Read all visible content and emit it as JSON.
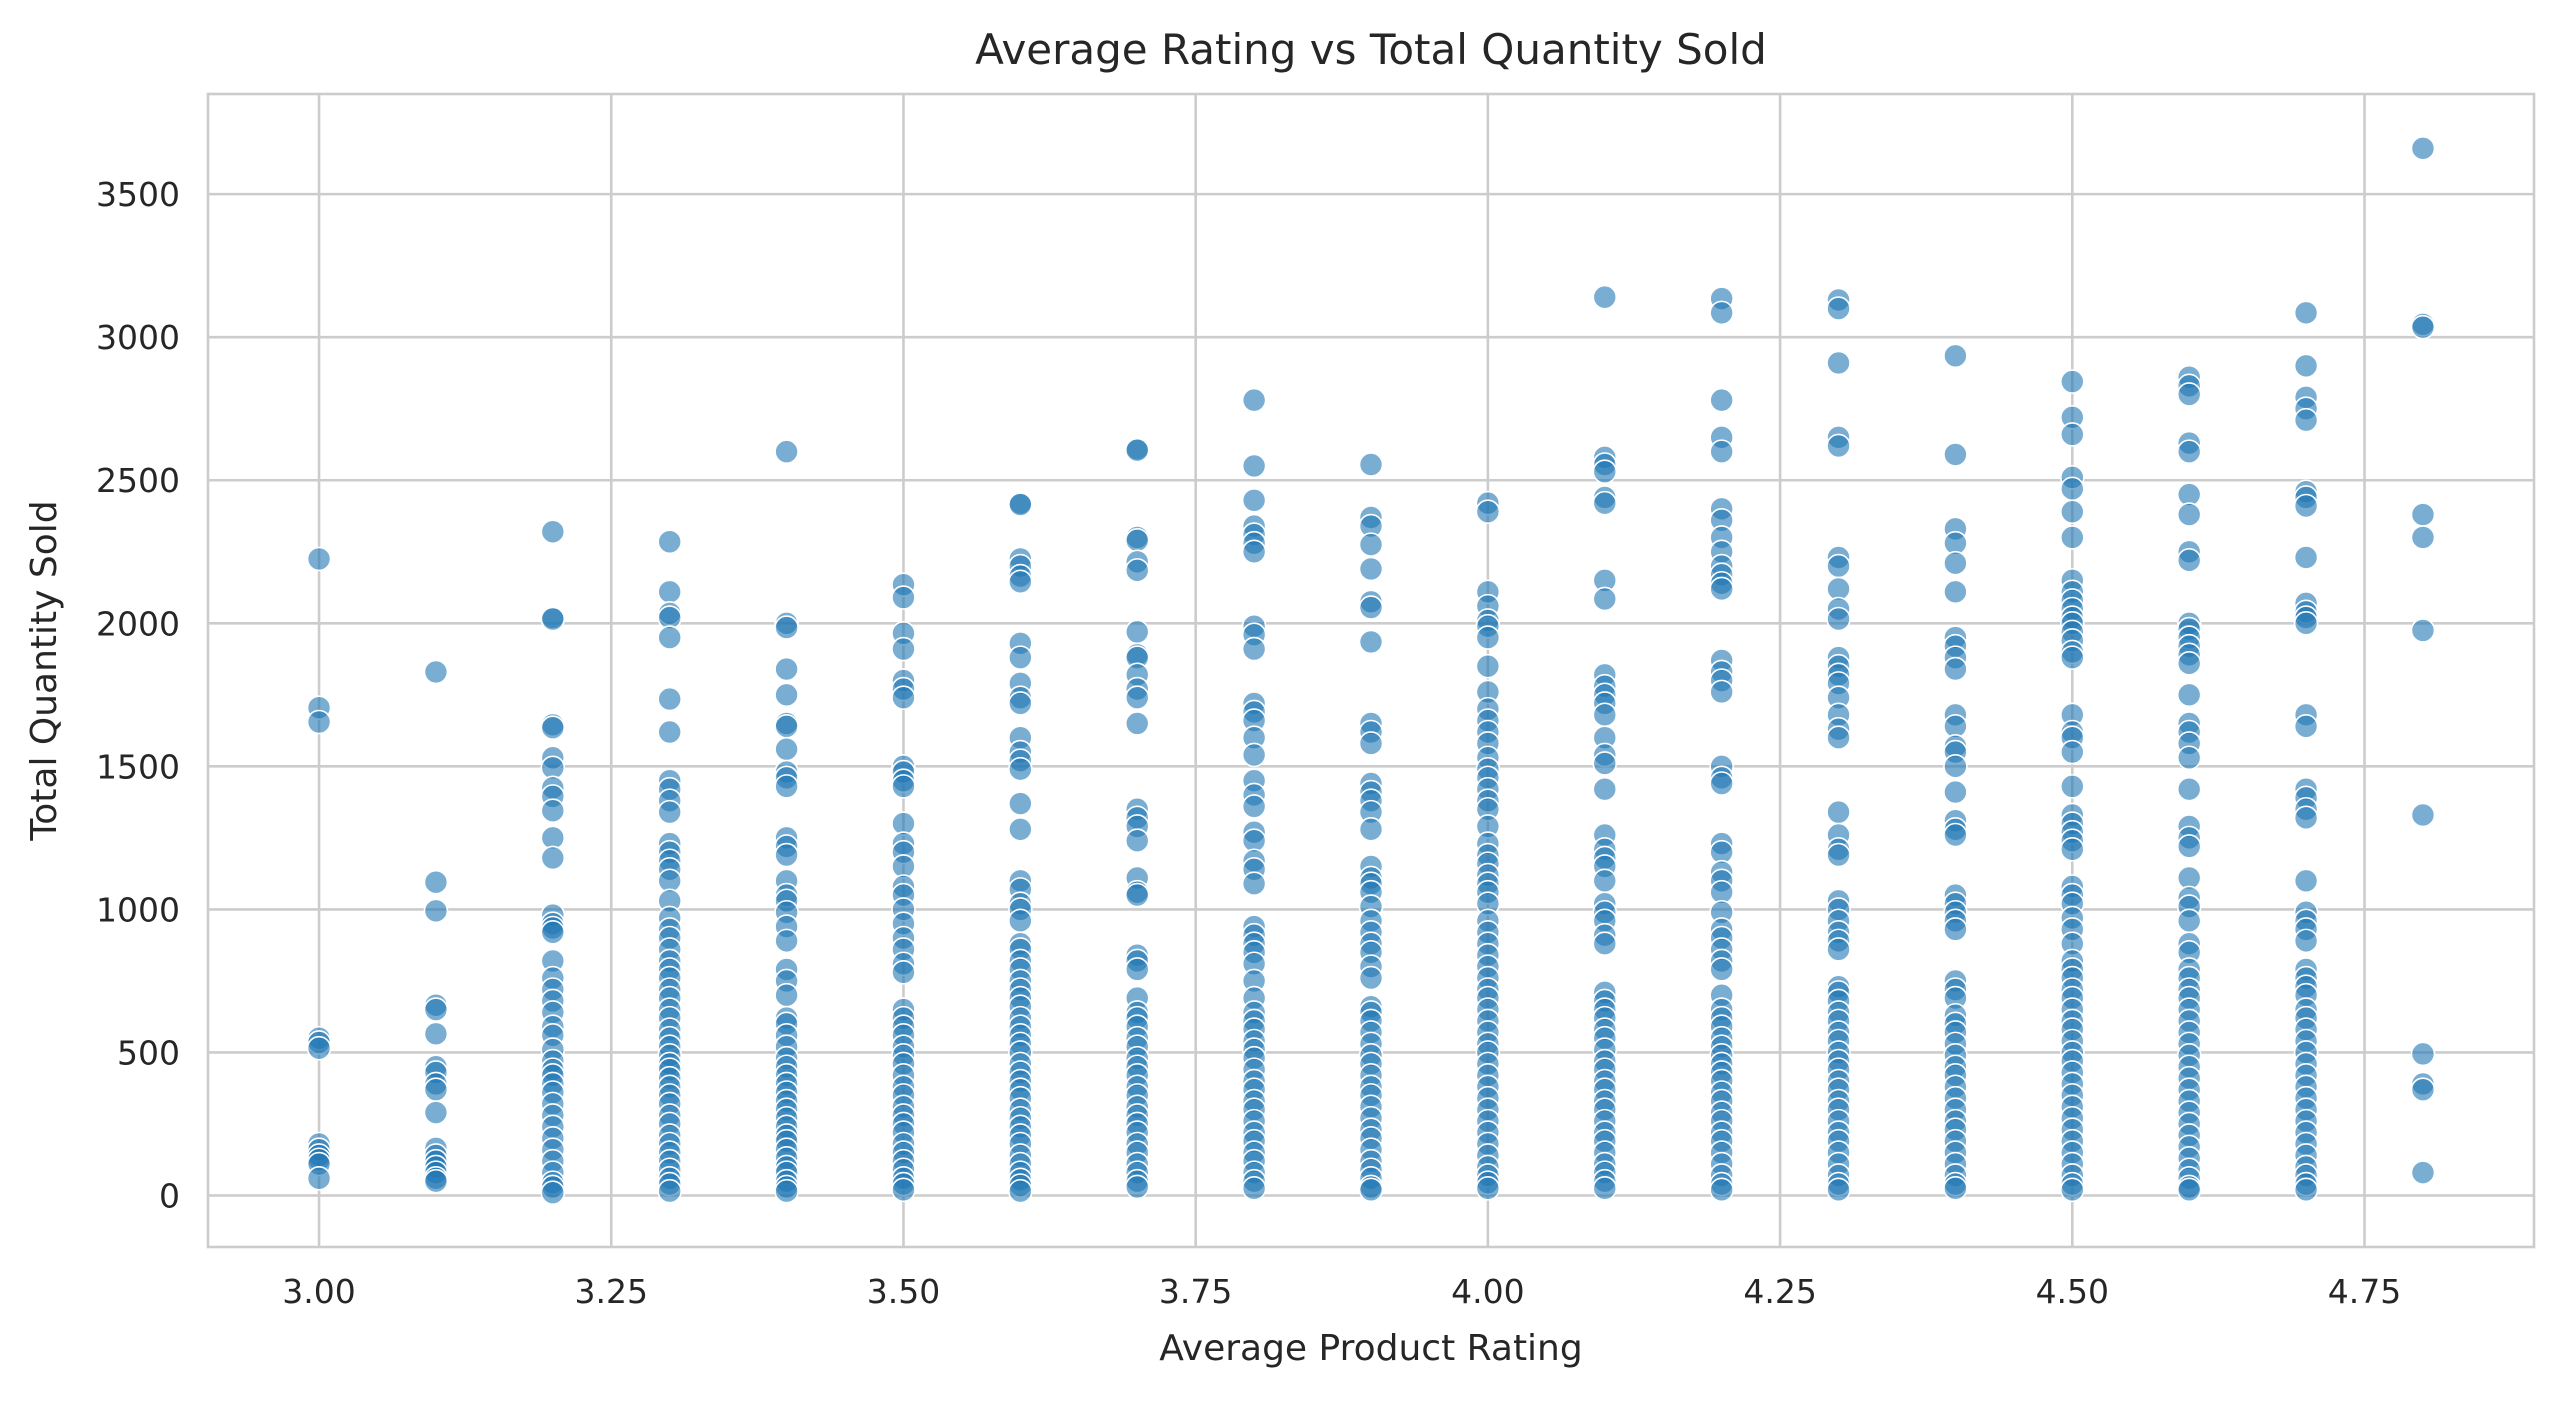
{
  "chart_data": {
    "type": "scatter",
    "title": "Average Rating vs Total Quantity Sold",
    "xlabel": "Average Product Rating",
    "ylabel": "Total Quantity Sold",
    "xlim": [
      2.905,
      4.895
    ],
    "ylim": [
      -180,
      3850
    ],
    "xticks": [
      3.0,
      3.25,
      3.5,
      3.75,
      4.0,
      4.25,
      4.5,
      4.75
    ],
    "xtick_labels": [
      "3.00",
      "3.25",
      "3.50",
      "3.75",
      "4.00",
      "4.25",
      "4.50",
      "4.75"
    ],
    "yticks": [
      0,
      500,
      1000,
      1500,
      2000,
      2500,
      3000,
      3500
    ],
    "ytick_labels": [
      "0",
      "500",
      "1000",
      "1500",
      "2000",
      "2500",
      "3000",
      "3500"
    ],
    "grid": true,
    "marker_color": "#1f77b4",
    "marker_opacity": 0.6,
    "points_by_rating": [
      {
        "x": 3.0,
        "y": [
          2225,
          1705,
          1655,
          550,
          535,
          515,
          180,
          160,
          140,
          125,
          110,
          60
        ]
      },
      {
        "x": 3.1,
        "y": [
          1830,
          1095,
          995,
          665,
          650,
          565,
          450,
          430,
          390,
          370,
          290,
          165,
          140,
          120,
          100,
          80,
          60,
          50
        ]
      },
      {
        "x": 3.2,
        "y": [
          2320,
          2020,
          2015,
          1645,
          1635,
          1530,
          1495,
          1425,
          1395,
          1345,
          1250,
          1180,
          980,
          950,
          935,
          920,
          820,
          760,
          720,
          680,
          640,
          590,
          560,
          510,
          470,
          440,
          420,
          390,
          360,
          320,
          280,
          240,
          200,
          160,
          120,
          80,
          45,
          30,
          10
        ]
      },
      {
        "x": 3.3,
        "y": [
          2285,
          2110,
          2035,
          2020,
          1950,
          1735,
          1620,
          1450,
          1420,
          1380,
          1340,
          1230,
          1200,
          1170,
          1140,
          1100,
          1030,
          970,
          930,
          900,
          860,
          820,
          790,
          760,
          720,
          690,
          650,
          620,
          580,
          550,
          520,
          490,
          460,
          440,
          410,
          380,
          350,
          320,
          280,
          250,
          210,
          180,
          150,
          120,
          90,
          60,
          40,
          15
        ]
      },
      {
        "x": 3.4,
        "y": [
          2600,
          2000,
          1985,
          1840,
          1750,
          1650,
          1640,
          1560,
          1480,
          1460,
          1430,
          1250,
          1220,
          1190,
          1100,
          1050,
          1030,
          990,
          940,
          890,
          790,
          750,
          700,
          620,
          600,
          560,
          520,
          480,
          450,
          420,
          390,
          360,
          330,
          300,
          270,
          240,
          210,
          190,
          160,
          130,
          100,
          80,
          50,
          30,
          15
        ]
      },
      {
        "x": 3.5,
        "y": [
          2135,
          2090,
          1965,
          1910,
          1800,
          1770,
          1740,
          1500,
          1480,
          1450,
          1430,
          1300,
          1230,
          1200,
          1150,
          1080,
          1050,
          1000,
          950,
          900,
          860,
          810,
          780,
          650,
          620,
          590,
          560,
          520,
          490,
          460,
          420,
          380,
          350,
          310,
          280,
          250,
          220,
          180,
          150,
          120,
          90,
          60,
          40,
          20
        ]
      },
      {
        "x": 3.6,
        "y": [
          2420,
          2415,
          2225,
          2200,
          2165,
          2145,
          1930,
          1880,
          1790,
          1740,
          1720,
          1600,
          1550,
          1520,
          1490,
          1370,
          1280,
          1100,
          1070,
          1020,
          1000,
          960,
          880,
          860,
          820,
          790,
          750,
          720,
          690,
          660,
          620,
          590,
          560,
          530,
          500,
          460,
          430,
          400,
          370,
          340,
          300,
          270,
          240,
          210,
          180,
          140,
          110,
          80,
          55,
          35,
          15
        ]
      },
      {
        "x": 3.7,
        "y": [
          2610,
          2605,
          2300,
          2290,
          2215,
          2185,
          1970,
          1890,
          1880,
          1820,
          1770,
          1740,
          1650,
          1350,
          1320,
          1290,
          1240,
          1110,
          1060,
          1050,
          840,
          820,
          790,
          690,
          640,
          620,
          590,
          550,
          520,
          480,
          450,
          420,
          380,
          350,
          310,
          280,
          250,
          220,
          180,
          150,
          110,
          80,
          50,
          30
        ]
      },
      {
        "x": 3.8,
        "y": [
          2780,
          2550,
          2430,
          2340,
          2310,
          2280,
          2250,
          1990,
          1960,
          1910,
          1720,
          1690,
          1660,
          1600,
          1540,
          1450,
          1400,
          1360,
          1270,
          1240,
          1170,
          1140,
          1090,
          940,
          910,
          880,
          850,
          810,
          750,
          690,
          640,
          610,
          580,
          540,
          510,
          480,
          440,
          400,
          370,
          330,
          300,
          260,
          220,
          190,
          150,
          120,
          80,
          50,
          25
        ]
      },
      {
        "x": 3.9,
        "y": [
          2555,
          2370,
          2340,
          2275,
          2190,
          2075,
          2055,
          1935,
          1650,
          1620,
          1580,
          1440,
          1410,
          1380,
          1340,
          1280,
          1150,
          1110,
          1090,
          1060,
          1010,
          960,
          920,
          880,
          850,
          800,
          760,
          660,
          640,
          610,
          570,
          530,
          490,
          460,
          420,
          380,
          350,
          310,
          270,
          230,
          200,
          160,
          120,
          90,
          60,
          30,
          20
        ]
      },
      {
        "x": 4.0,
        "y": [
          2420,
          2390,
          2110,
          2060,
          2010,
          1990,
          1950,
          1850,
          1760,
          1700,
          1660,
          1620,
          1580,
          1530,
          1490,
          1460,
          1420,
          1380,
          1350,
          1290,
          1230,
          1190,
          1160,
          1120,
          1090,
          1060,
          1020,
          960,
          920,
          880,
          840,
          800,
          760,
          720,
          690,
          650,
          610,
          570,
          530,
          500,
          460,
          420,
          380,
          340,
          300,
          260,
          220,
          180,
          140,
          100,
          70,
          45,
          25
        ]
      },
      {
        "x": 4.1,
        "y": [
          3140,
          2580,
          2555,
          2530,
          2440,
          2420,
          2150,
          2085,
          1820,
          1780,
          1750,
          1720,
          1680,
          1600,
          1540,
          1510,
          1420,
          1260,
          1210,
          1180,
          1150,
          1100,
          1020,
          990,
          960,
          910,
          880,
          710,
          680,
          650,
          620,
          580,
          550,
          510,
          470,
          440,
          400,
          370,
          330,
          300,
          260,
          220,
          190,
          150,
          110,
          80,
          50,
          25
        ]
      },
      {
        "x": 4.2,
        "y": [
          3135,
          3085,
          2780,
          2650,
          2600,
          2400,
          2360,
          2300,
          2250,
          2200,
          2170,
          2140,
          2120,
          1870,
          1830,
          1800,
          1760,
          1500,
          1460,
          1440,
          1230,
          1200,
          1130,
          1100,
          1060,
          990,
          930,
          900,
          860,
          820,
          790,
          700,
          650,
          620,
          590,
          550,
          520,
          490,
          460,
          430,
          400,
          360,
          330,
          290,
          260,
          220,
          190,
          150,
          110,
          70,
          40,
          20
        ]
      },
      {
        "x": 4.3,
        "y": [
          3130,
          3100,
          2910,
          2650,
          2620,
          2230,
          2200,
          2120,
          2050,
          2015,
          1880,
          1850,
          1820,
          1790,
          1740,
          1680,
          1630,
          1600,
          1340,
          1260,
          1210,
          1190,
          1030,
          1000,
          960,
          920,
          890,
          860,
          730,
          710,
          680,
          640,
          610,
          570,
          540,
          500,
          470,
          440,
          400,
          370,
          330,
          300,
          260,
          220,
          190,
          150,
          110,
          70,
          40,
          20
        ]
      },
      {
        "x": 4.4,
        "y": [
          2935,
          2590,
          2330,
          2280,
          2210,
          2110,
          1950,
          1920,
          1880,
          1840,
          1680,
          1640,
          1570,
          1550,
          1500,
          1410,
          1310,
          1280,
          1260,
          1050,
          1020,
          990,
          960,
          930,
          750,
          720,
          690,
          630,
          600,
          570,
          530,
          490,
          450,
          420,
          380,
          340,
          300,
          260,
          230,
          190,
          150,
          110,
          70,
          40,
          25
        ]
      },
      {
        "x": 4.5,
        "y": [
          2845,
          2720,
          2660,
          2510,
          2470,
          2390,
          2300,
          2150,
          2110,
          2080,
          2050,
          2020,
          2000,
          1970,
          1940,
          1900,
          1880,
          1680,
          1620,
          1600,
          1550,
          1430,
          1330,
          1300,
          1270,
          1240,
          1210,
          1080,
          1050,
          1020,
          970,
          930,
          880,
          820,
          790,
          760,
          720,
          690,
          650,
          610,
          580,
          540,
          500,
          470,
          430,
          390,
          350,
          310,
          270,
          230,
          190,
          150,
          110,
          70,
          40,
          20
        ]
      },
      {
        "x": 4.6,
        "y": [
          2860,
          2830,
          2800,
          2630,
          2600,
          2450,
          2380,
          2250,
          2220,
          2000,
          1980,
          1950,
          1920,
          1890,
          1860,
          1750,
          1650,
          1620,
          1580,
          1530,
          1420,
          1290,
          1250,
          1220,
          1110,
          1040,
          1010,
          960,
          880,
          850,
          790,
          760,
          720,
          690,
          650,
          610,
          570,
          530,
          490,
          450,
          410,
          370,
          330,
          290,
          250,
          210,
          170,
          130,
          90,
          60,
          30,
          20
        ]
      },
      {
        "x": 4.7,
        "y": [
          3085,
          2900,
          2790,
          2750,
          2710,
          2460,
          2440,
          2410,
          2230,
          2070,
          2040,
          2020,
          2000,
          1680,
          1640,
          1420,
          1390,
          1350,
          1320,
          1100,
          990,
          960,
          930,
          890,
          790,
          760,
          730,
          700,
          650,
          620,
          580,
          540,
          500,
          460,
          420,
          380,
          340,
          300,
          260,
          220,
          180,
          140,
          100,
          70,
          40,
          20
        ]
      },
      {
        "x": 4.8,
        "y": [
          3660,
          3045,
          3035,
          2380,
          2300,
          1975,
          1330,
          495,
          390,
          370,
          80
        ]
      }
    ]
  }
}
